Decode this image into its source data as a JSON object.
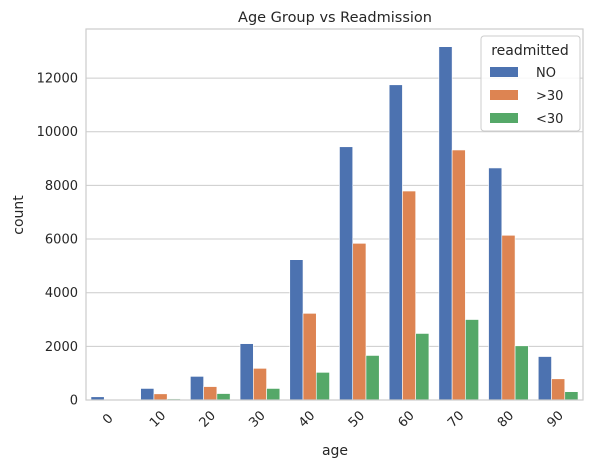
{
  "chart_data": {
    "type": "bar",
    "title": "Age Group vs Readmission",
    "xlabel": "age",
    "ylabel": "count",
    "categories": [
      "0",
      "10",
      "20",
      "30",
      "40",
      "50",
      "60",
      "70",
      "80",
      "90"
    ],
    "series": [
      {
        "name": "NO",
        "color": "#4c72b0",
        "values": [
          120,
          430,
          880,
          2100,
          5230,
          9440,
          11750,
          13170,
          8650,
          1620
        ]
      },
      {
        "name": ">30",
        "color": "#dd8452",
        "values": [
          30,
          230,
          500,
          1180,
          3230,
          5840,
          7790,
          9320,
          6140,
          790
        ]
      },
      {
        "name": "<30",
        "color": "#55a868",
        "values": [
          0,
          40,
          240,
          430,
          1030,
          1660,
          2480,
          3000,
          2020,
          310
        ]
      }
    ],
    "yticks": [
      0,
      2000,
      4000,
      6000,
      8000,
      10000,
      12000
    ],
    "ylim": [
      0,
      13830
    ],
    "grid": true,
    "legend": {
      "title": "readmitted",
      "placement": "top-right"
    }
  }
}
